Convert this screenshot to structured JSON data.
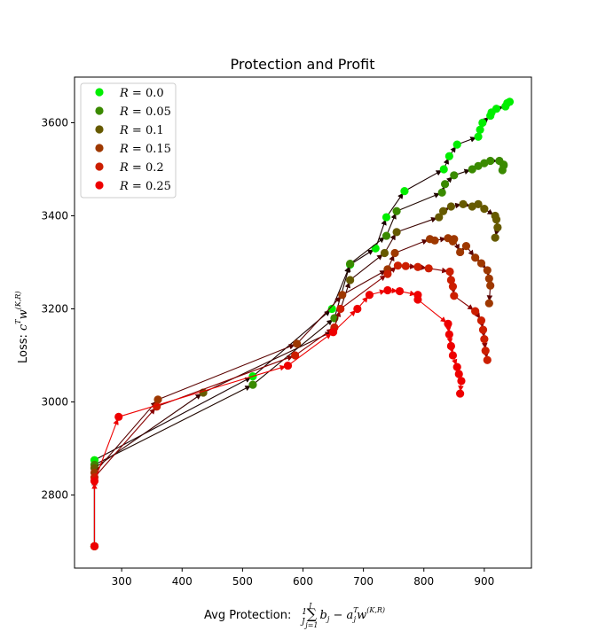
{
  "chart_data": {
    "type": "line",
    "title": "Protection and Profit",
    "xlabel_text": "Avg Protection:",
    "xlabel_math": "1/J Σ_{j=1}^{J} b_j − a_j^T w^(K,R)",
    "ylabel_text": "Loss:",
    "ylabel_math": "c^T w^(K,R)",
    "xlim": [
      222,
      978
    ],
    "ylim": [
      2643,
      3698
    ],
    "xticks": [
      300,
      400,
      500,
      600,
      700,
      800,
      900
    ],
    "yticks": [
      2800,
      3000,
      3200,
      3400,
      3600
    ],
    "legend_position": "upper-left",
    "series": [
      {
        "name": "R = 0.0",
        "label_r": "R",
        "label_val": "0.0",
        "color": "#00ee00",
        "arrow_color": "#1a0000",
        "x": [
          255,
          255,
          517,
          648,
          678,
          720,
          738,
          768,
          833,
          842,
          855,
          890,
          893,
          897,
          910,
          912,
          920,
          935,
          938,
          942
        ],
        "y": [
          2690,
          2875,
          3055,
          3200,
          3295,
          3330,
          3397,
          3453,
          3500,
          3528,
          3553,
          3570,
          3585,
          3600,
          3615,
          3622,
          3630,
          3635,
          3642,
          3645
        ]
      },
      {
        "name": "R = 0.05",
        "label_r": "R",
        "label_val": "0.05",
        "color": "#3a8a00",
        "arrow_color": "#200800",
        "x": [
          255,
          255,
          517,
          652,
          678,
          738,
          755,
          830,
          835,
          850,
          880,
          890,
          900,
          910,
          925,
          932,
          930,
          932
        ],
        "y": [
          2690,
          2865,
          3037,
          3180,
          3297,
          3357,
          3410,
          3450,
          3468,
          3487,
          3500,
          3507,
          3513,
          3518,
          3518,
          3510,
          3498,
          3508
        ]
      },
      {
        "name": "R = 0.1",
        "label_r": "R",
        "label_val": "0.1",
        "color": "#665a00",
        "arrow_color": "#3a0300",
        "x": [
          255,
          255,
          435,
          650,
          678,
          735,
          755,
          825,
          832,
          845,
          865,
          880,
          890,
          900,
          918,
          920,
          922,
          918
        ],
        "y": [
          2690,
          2858,
          3020,
          3152,
          3262,
          3320,
          3365,
          3397,
          3410,
          3420,
          3425,
          3420,
          3425,
          3415,
          3400,
          3392,
          3375,
          3353
        ]
      },
      {
        "name": "R = 0.15",
        "label_r": "R",
        "label_val": "0.15",
        "color": "#9e3800",
        "arrow_color": "#5a0200",
        "x": [
          255,
          255,
          360,
          590,
          665,
          740,
          752,
          810,
          818,
          840,
          848,
          850,
          860,
          870,
          885,
          895,
          905,
          908,
          910,
          908
        ],
        "y": [
          2690,
          2848,
          3005,
          3125,
          3230,
          3285,
          3320,
          3350,
          3347,
          3352,
          3345,
          3350,
          3322,
          3335,
          3310,
          3298,
          3283,
          3265,
          3250,
          3212
        ]
      },
      {
        "name": "R = 0.2",
        "label_r": "R",
        "label_val": "0.2",
        "color": "#cc1e00",
        "arrow_color": "#880100",
        "x": [
          255,
          255,
          358,
          587,
          652,
          662,
          740,
          757,
          770,
          790,
          808,
          843,
          845,
          848,
          850,
          885,
          895,
          898,
          900,
          902,
          905
        ],
        "y": [
          2690,
          2838,
          2990,
          3100,
          3160,
          3200,
          3275,
          3293,
          3292,
          3290,
          3287,
          3280,
          3262,
          3248,
          3228,
          3195,
          3175,
          3155,
          3135,
          3110,
          3090
        ]
      },
      {
        "name": "R = 0.25",
        "label_r": "R",
        "label_val": "0.25",
        "color": "#ee0000",
        "arrow_color": "#ee0000",
        "x": [
          255,
          255,
          295,
          575,
          650,
          690,
          710,
          740,
          760,
          790,
          790,
          840,
          842,
          845,
          848,
          855,
          858,
          862,
          860
        ],
        "y": [
          2690,
          2830,
          2968,
          3078,
          3150,
          3200,
          3230,
          3240,
          3238,
          3230,
          3220,
          3168,
          3145,
          3120,
          3100,
          3075,
          3060,
          3045,
          3018
        ]
      }
    ]
  }
}
